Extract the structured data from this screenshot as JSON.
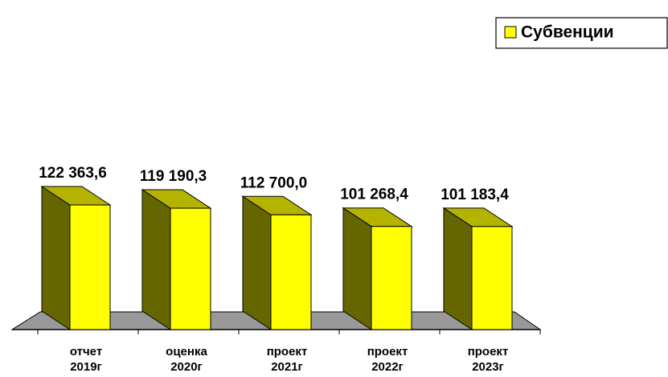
{
  "chart_data": {
    "type": "bar3d",
    "categories": [
      [
        "отчет",
        "2019г"
      ],
      [
        "оценка",
        "2020г"
      ],
      [
        "проект",
        "2021г"
      ],
      [
        "проект",
        "2022г"
      ],
      [
        "проект",
        "2023г"
      ]
    ],
    "series": [
      {
        "name": "Субвенции",
        "color": "#ffff00",
        "values": [
          122363.6,
          119190.3,
          112700.0,
          101268.4,
          101183.4
        ],
        "value_labels": [
          "122 363,6",
          "119 190,3",
          "112 700,0",
          "101 268,4",
          "101 183,4"
        ]
      }
    ],
    "legend": "top-right"
  }
}
